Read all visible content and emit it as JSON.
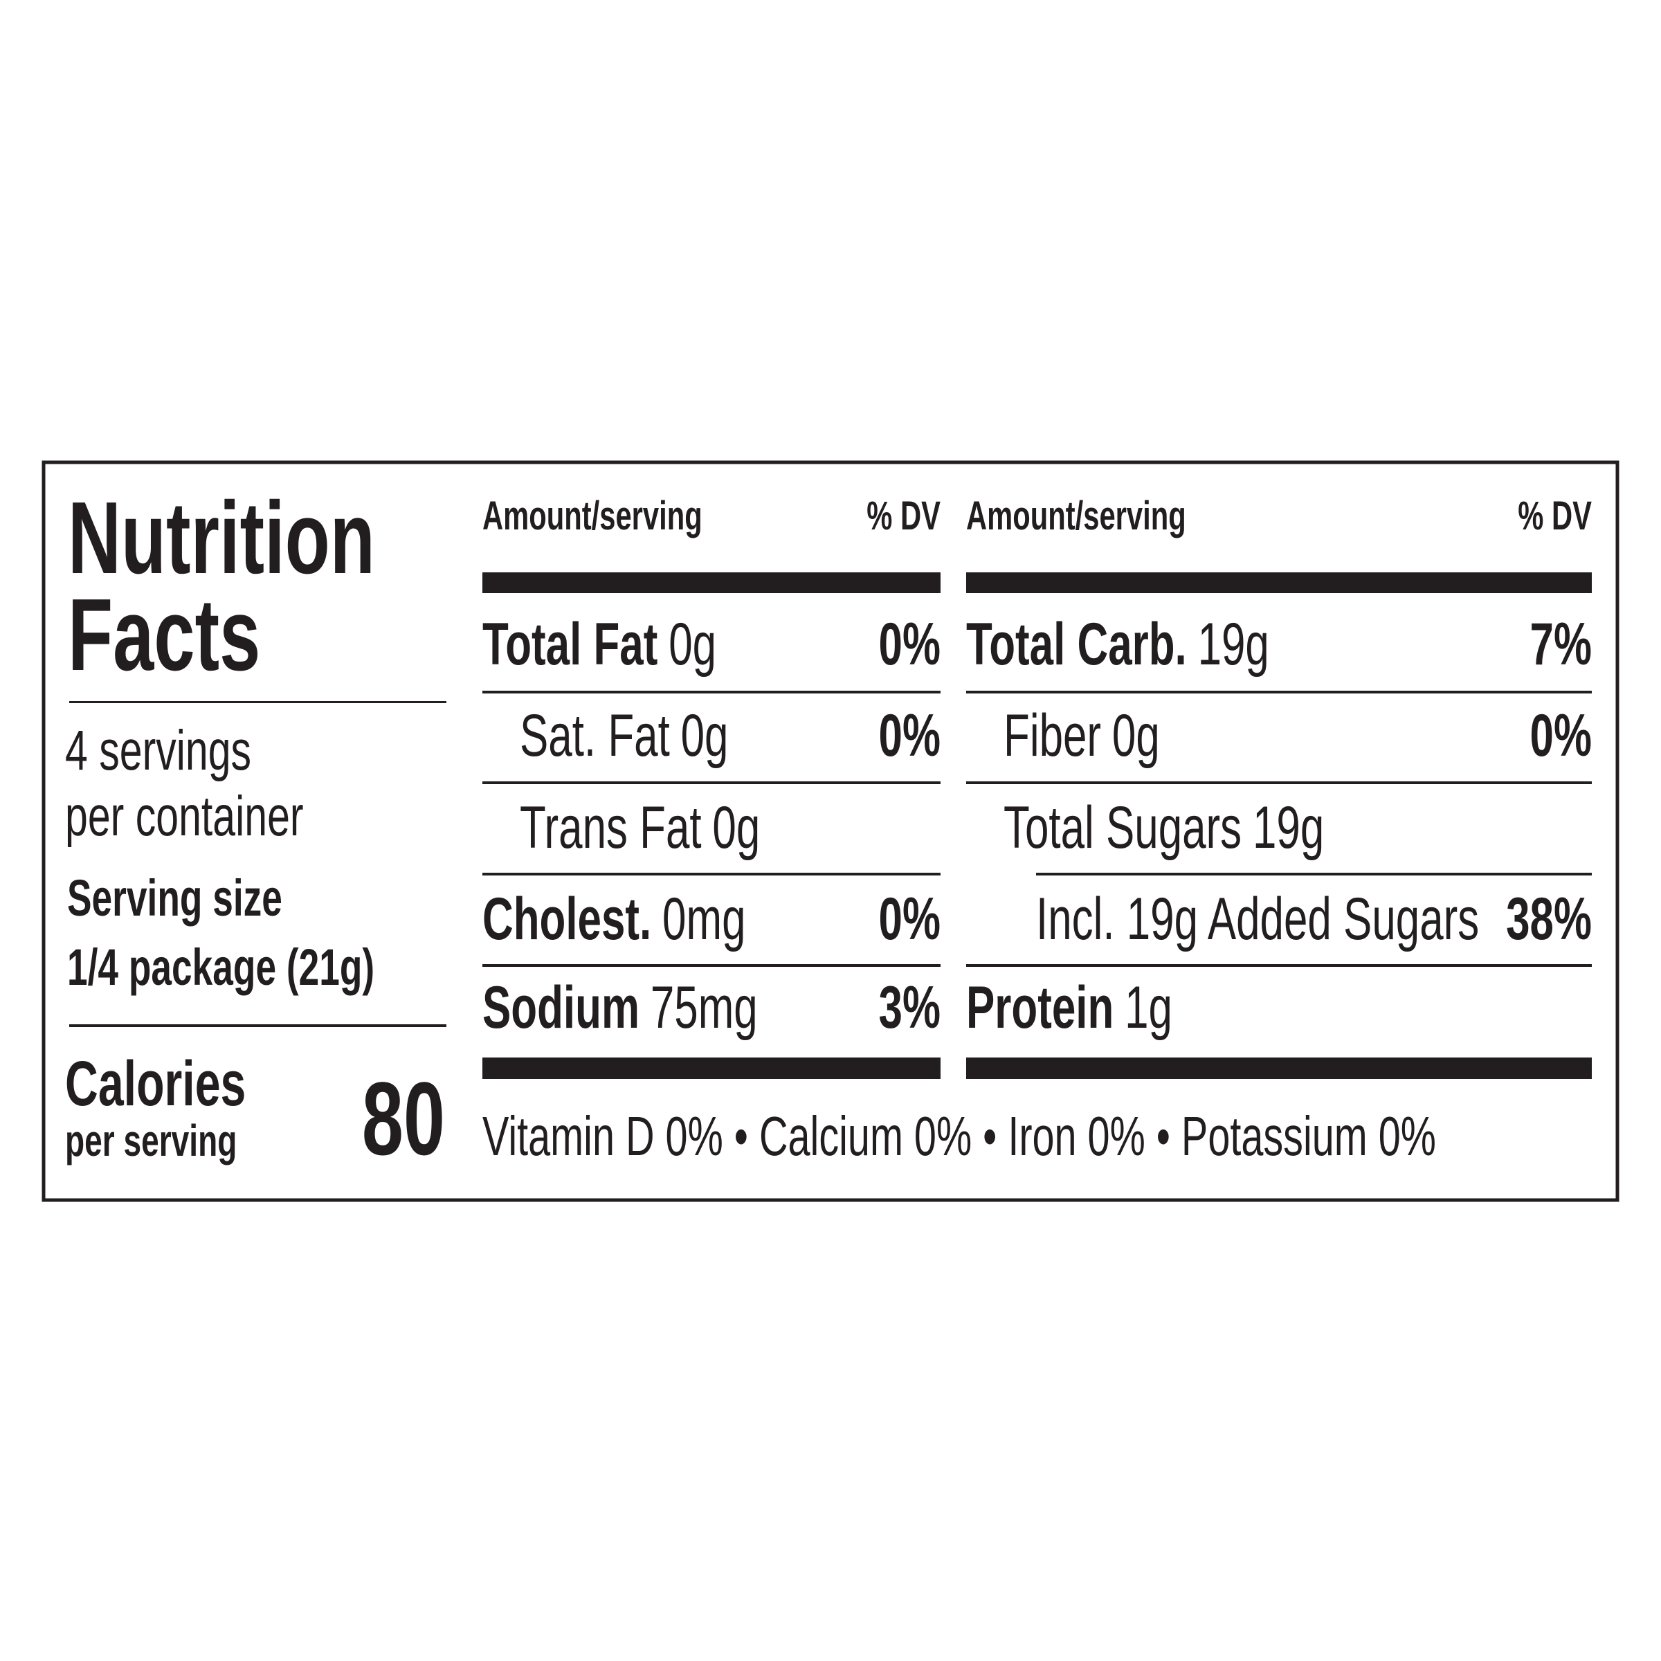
{
  "title": {
    "line1": "Nutrition",
    "line2": "Facts"
  },
  "servings": {
    "line1": "4 servings",
    "line2": "per container"
  },
  "serving_size": {
    "label": "Serving size",
    "value": "1/4 package (21g)"
  },
  "calories": {
    "label": "Calories",
    "sublabel": "per serving",
    "value": 80
  },
  "columns": [
    {
      "header_amount": "Amount/serving",
      "header_dv": "% DV",
      "rows": [
        {
          "name": "Total Fat",
          "amount": "0g",
          "dv": "0%",
          "level": 0
        },
        {
          "name": "Sat. Fat",
          "amount": "0g",
          "dv": "0%",
          "level": 1
        },
        {
          "name": "Trans Fat",
          "amount": "0g",
          "level": 1
        },
        {
          "name": "Cholest.",
          "amount": "0mg",
          "dv": "0%",
          "level": 0
        },
        {
          "name": "Sodium",
          "amount": "75mg",
          "dv": "3%",
          "level": 0
        }
      ]
    },
    {
      "header_amount": "Amount/serving",
      "header_dv": "% DV",
      "rows": [
        {
          "name": "Total Carb.",
          "amount": "19g",
          "dv": "7%",
          "level": 0
        },
        {
          "name": "Fiber",
          "amount": "0g",
          "dv": "0%",
          "level": 1
        },
        {
          "name": "Total Sugars",
          "amount": "19g",
          "level": 1
        },
        {
          "name": "Incl. 19g Added Sugars",
          "dv": "38%",
          "level": 2
        },
        {
          "name": "Protein",
          "amount": "1g",
          "level": 0
        }
      ]
    }
  ],
  "footer": "Vitamin D 0% • Calcium 0% • Iron 0% • Potassium 0%"
}
